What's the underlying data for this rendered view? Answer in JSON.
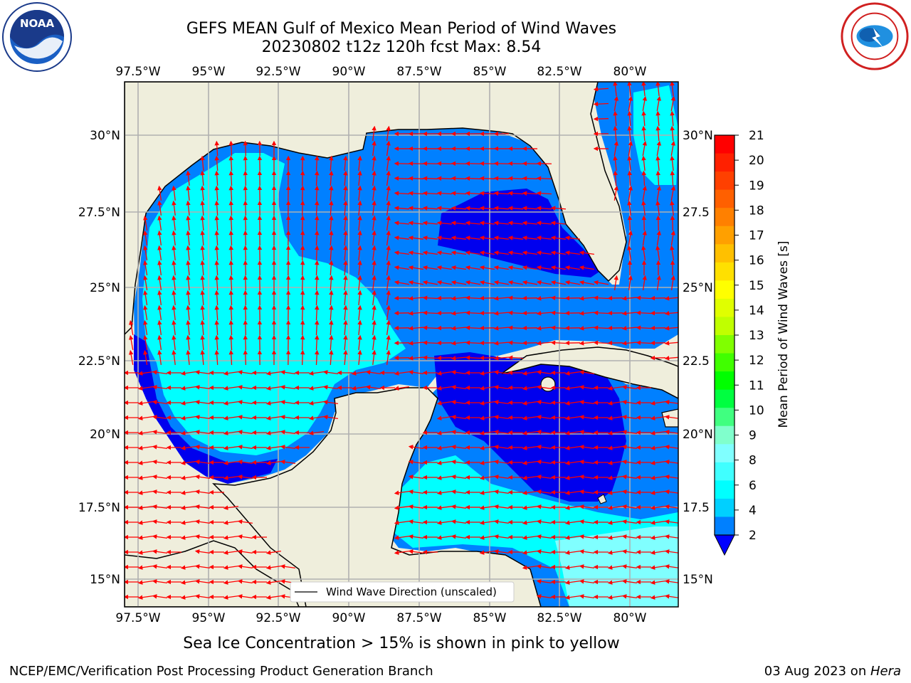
{
  "header": {
    "title_line1": "GEFS MEAN Gulf of Mexico Mean Period of Wind Waves",
    "title_line2": "20230802 t12z 120h fcst   Max: 8.54"
  },
  "logos": {
    "left": "noaa-logo",
    "left_text": "NOAA",
    "right": "nws-logo"
  },
  "map": {
    "lon_labels": [
      "97.5°W",
      "95°W",
      "92.5°W",
      "90°W",
      "87.5°W",
      "85°W",
      "82.5°W",
      "80°W"
    ],
    "lat_labels_left": [
      "30°N",
      "27.5°N",
      "25°N",
      "22.5°N",
      "20°N",
      "17.5°N",
      "15°N"
    ],
    "lat_labels_right": [
      "30°N",
      "27.5",
      "25°N",
      "22.5",
      "20°N",
      "17.5",
      "15°N"
    ],
    "legend_text": "Wind Wave Direction (unscaled)",
    "colors": {
      "land": "#efeedc",
      "ocean_low": "#0080ff",
      "ocean_lowest": "#0000ee",
      "ocean_mid": "#00ffff",
      "ocean_hi": "#80ffff",
      "arrow": "#ff0000",
      "grid": "#b0b0b0"
    }
  },
  "colorbar": {
    "label": "Mean Period of Wind Waves [s]",
    "ticks": [
      "21",
      "20",
      "19",
      "18",
      "17",
      "16",
      "15",
      "14",
      "13",
      "12",
      "11",
      "10",
      "9",
      "8",
      "6",
      "4",
      "2"
    ],
    "colors": [
      "#ff0000",
      "#ff2000",
      "#ff4000",
      "#ff6000",
      "#ff8000",
      "#ffa000",
      "#ffc000",
      "#ffe000",
      "#ffff00",
      "#e0ff00",
      "#c0ff00",
      "#80ff00",
      "#40ff00",
      "#00ff00",
      "#00ff40",
      "#40ff80",
      "#80ffcc",
      "#80ffff",
      "#40ffff",
      "#00ffff",
      "#00d0ff",
      "#0080ff"
    ],
    "extend_color": "#0000ff"
  },
  "footer": {
    "ice_note": "Sea Ice Concentration > 15% is shown in pink to yellow",
    "left": "NCEP/EMC/Verification Post Processing Product Generation Branch",
    "right_date": "03 Aug 2023 on ",
    "right_host": "Hera"
  }
}
